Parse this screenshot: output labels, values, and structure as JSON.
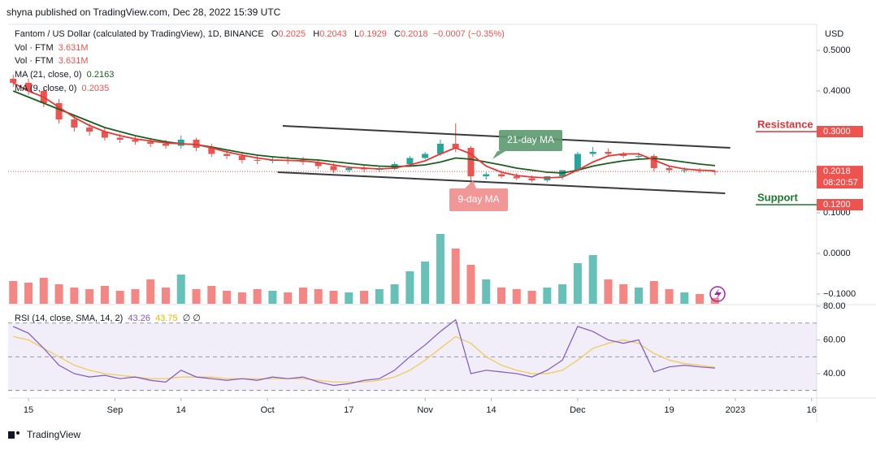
{
  "header": "shyna published on TradingView.com, Dec 28, 2022 15:39 UTC",
  "footer": "TradingView",
  "chart_data": {
    "type": "candlestick",
    "title": "Fantom / US Dollar (calculated by TradingView), 1D, BINANCE",
    "ohlc_letters": [
      "O",
      "H",
      "L",
      "C"
    ],
    "change": "−0.0007 (−0.35%)",
    "currency": "USD",
    "countdown": "08:20:57",
    "up_color": "#26a69a",
    "down_color": "#ef5350",
    "x": [
      "2022-08-12",
      "2022-08-15",
      "2022-08-18",
      "2022-08-21",
      "2022-08-24",
      "2022-08-27",
      "2022-08-30",
      "2022-09-02",
      "2022-09-05",
      "2022-09-08",
      "2022-09-11",
      "2022-09-14",
      "2022-09-17",
      "2022-09-20",
      "2022-09-23",
      "2022-09-26",
      "2022-09-29",
      "2022-10-02",
      "2022-10-05",
      "2022-10-08",
      "2022-10-11",
      "2022-10-14",
      "2022-10-17",
      "2022-10-20",
      "2022-10-23",
      "2022-10-26",
      "2022-10-29",
      "2022-11-01",
      "2022-11-04",
      "2022-11-07",
      "2022-11-10",
      "2022-11-13",
      "2022-11-16",
      "2022-11-19",
      "2022-11-22",
      "2022-11-25",
      "2022-11-28",
      "2022-12-01",
      "2022-12-04",
      "2022-12-07",
      "2022-12-10",
      "2022-12-13",
      "2022-12-16",
      "2022-12-19",
      "2022-12-22",
      "2022-12-25",
      "2022-12-28"
    ],
    "open": [
      0.43,
      0.42,
      0.4,
      0.37,
      0.33,
      0.31,
      0.3,
      0.285,
      0.28,
      0.275,
      0.27,
      0.265,
      0.28,
      0.26,
      0.245,
      0.24,
      0.23,
      0.228,
      0.23,
      0.228,
      0.225,
      0.215,
      0.205,
      0.21,
      0.207,
      0.208,
      0.22,
      0.235,
      0.245,
      0.27,
      0.26,
      0.19,
      0.195,
      0.19,
      0.185,
      0.18,
      0.19,
      0.205,
      0.245,
      0.25,
      0.245,
      0.24,
      0.24,
      0.21,
      0.205,
      0.205,
      0.2025
    ],
    "high": [
      0.44,
      0.43,
      0.41,
      0.38,
      0.34,
      0.32,
      0.31,
      0.295,
      0.29,
      0.285,
      0.28,
      0.29,
      0.285,
      0.27,
      0.255,
      0.25,
      0.24,
      0.238,
      0.24,
      0.238,
      0.232,
      0.222,
      0.215,
      0.218,
      0.215,
      0.225,
      0.24,
      0.25,
      0.28,
      0.32,
      0.265,
      0.2,
      0.205,
      0.198,
      0.192,
      0.19,
      0.2,
      0.25,
      0.262,
      0.258,
      0.25,
      0.248,
      0.245,
      0.215,
      0.212,
      0.21,
      0.2043
    ],
    "low": [
      0.41,
      0.39,
      0.36,
      0.32,
      0.3,
      0.29,
      0.278,
      0.272,
      0.268,
      0.262,
      0.258,
      0.258,
      0.252,
      0.238,
      0.232,
      0.222,
      0.22,
      0.222,
      0.22,
      0.218,
      0.208,
      0.198,
      0.2,
      0.2,
      0.2,
      0.205,
      0.218,
      0.232,
      0.24,
      0.25,
      0.17,
      0.182,
      0.185,
      0.18,
      0.175,
      0.175,
      0.182,
      0.2,
      0.238,
      0.238,
      0.235,
      0.232,
      0.202,
      0.198,
      0.198,
      0.198,
      0.1929
    ],
    "close": [
      0.42,
      0.4,
      0.37,
      0.33,
      0.31,
      0.3,
      0.285,
      0.28,
      0.275,
      0.27,
      0.265,
      0.28,
      0.26,
      0.245,
      0.24,
      0.23,
      0.228,
      0.23,
      0.228,
      0.225,
      0.215,
      0.205,
      0.21,
      0.207,
      0.208,
      0.22,
      0.235,
      0.245,
      0.27,
      0.26,
      0.19,
      0.195,
      0.19,
      0.185,
      0.18,
      0.19,
      0.205,
      0.245,
      0.25,
      0.245,
      0.24,
      0.24,
      0.21,
      0.205,
      0.205,
      0.203,
      0.2018
    ],
    "series": [
      {
        "name": "MA (21, close, 0)",
        "color": "#1b5e20",
        "values": [
          0.4,
          0.385,
          0.37,
          0.355,
          0.34,
          0.325,
          0.31,
          0.3,
          0.29,
          0.282,
          0.275,
          0.27,
          0.268,
          0.262,
          0.255,
          0.248,
          0.242,
          0.238,
          0.235,
          0.232,
          0.23,
          0.226,
          0.222,
          0.218,
          0.215,
          0.214,
          0.215,
          0.218,
          0.225,
          0.235,
          0.232,
          0.225,
          0.218,
          0.21,
          0.205,
          0.2,
          0.198,
          0.205,
          0.215,
          0.222,
          0.228,
          0.232,
          0.234,
          0.23,
          0.225,
          0.22,
          0.2163
        ]
      },
      {
        "name": "MA (9, close, 0)",
        "color": "#e53935",
        "values": [
          0.42,
          0.4,
          0.385,
          0.36,
          0.335,
          0.315,
          0.3,
          0.29,
          0.282,
          0.277,
          0.272,
          0.27,
          0.268,
          0.26,
          0.25,
          0.242,
          0.235,
          0.23,
          0.229,
          0.228,
          0.224,
          0.218,
          0.212,
          0.21,
          0.208,
          0.21,
          0.218,
          0.228,
          0.245,
          0.26,
          0.245,
          0.215,
          0.2,
          0.192,
          0.188,
          0.186,
          0.188,
          0.205,
          0.225,
          0.24,
          0.245,
          0.245,
          0.23,
          0.215,
          0.208,
          0.205,
          0.2035
        ]
      }
    ],
    "xlim": [
      "2022-08-11",
      "2023-01-17"
    ],
    "xticks": [
      {
        "value": "2022-08-15",
        "label": "15"
      },
      {
        "value": "2022-09-01",
        "label": "Sep"
      },
      {
        "value": "2022-09-14",
        "label": "14"
      },
      {
        "value": "2022-10-01",
        "label": "Oct"
      },
      {
        "value": "2022-10-17",
        "label": "17"
      },
      {
        "value": "2022-11-01",
        "label": "Nov"
      },
      {
        "value": "2022-11-14",
        "label": "14"
      },
      {
        "value": "2022-12-01",
        "label": "Dec"
      },
      {
        "value": "2022-12-19",
        "label": "19"
      },
      {
        "value": "2023-01-01",
        "label": "2023"
      },
      {
        "value": "2023-01-16",
        "label": "16"
      }
    ],
    "ylim": [
      -0.125,
      0.55
    ],
    "yticks": [
      {
        "value": 0.5,
        "label": "0.5000"
      },
      {
        "value": 0.4,
        "label": "0.4000"
      },
      {
        "value": 0.1,
        "label": "0.1000"
      },
      {
        "value": 0,
        "label": "0.0000"
      },
      {
        "value": -0.1,
        "label": "−0.1000"
      }
    ],
    "grid": false,
    "trend_lines": [
      {
        "x": [
          "2022-10-04",
          "2022-12-31"
        ],
        "y": [
          0.314,
          0.26
        ]
      },
      {
        "x": [
          "2022-10-03",
          "2022-12-30"
        ],
        "y": [
          0.2,
          0.148
        ]
      }
    ],
    "levels": [
      {
        "name": "Resistance",
        "value": 0.3,
        "label": "0.3000",
        "color": "#e0323a"
      },
      {
        "name": "Support",
        "value": 0.12,
        "label": "0.1200",
        "color": "#1b7a2e"
      }
    ],
    "annotations": [
      "21-day MA",
      "9-day MA"
    ],
    "volume": {
      "name": "Vol · FTM",
      "legend_value": "3.631M",
      "ylim": [
        0,
        50000000
      ],
      "values": [
        14000000,
        13000000,
        16000000,
        12000000,
        10000000,
        9000000,
        11000000,
        8000000,
        9000000,
        15000000,
        10000000,
        18000000,
        9000000,
        11000000,
        8000000,
        7000000,
        9000000,
        8000000,
        7000000,
        10000000,
        9000000,
        8000000,
        7000000,
        8000000,
        9000000,
        12000000,
        20000000,
        26000000,
        43000000,
        34000000,
        24000000,
        15000000,
        10000000,
        9000000,
        8000000,
        10000000,
        12000000,
        25000000,
        30000000,
        15000000,
        12000000,
        10000000,
        14000000,
        9000000,
        7000000,
        6000000,
        3631000
      ]
    },
    "rsi": {
      "name": "RSI (14, close, SMA, 14, 2)",
      "color": "#7e57c2",
      "sma_color": "#f0c94a",
      "extra": "∅ ∅",
      "values": [
        68,
        64,
        55,
        45,
        40,
        38,
        39,
        37,
        38,
        36,
        35,
        42,
        38,
        37,
        36,
        37,
        36,
        38,
        37,
        38,
        35,
        33,
        34,
        36,
        37,
        42,
        50,
        57,
        65,
        72,
        40,
        42,
        41,
        40,
        38,
        42,
        48,
        68,
        65,
        60,
        58,
        60,
        41,
        44,
        45,
        44,
        43.26
      ],
      "sma": [
        62,
        60,
        55,
        50,
        45,
        42,
        40,
        39,
        38,
        37,
        37,
        38,
        38,
        38,
        37,
        37,
        37,
        37,
        37,
        37,
        36,
        35,
        35,
        35,
        36,
        38,
        42,
        48,
        55,
        62,
        58,
        50,
        45,
        42,
        40,
        40,
        42,
        48,
        55,
        58,
        60,
        58,
        52,
        48,
        46,
        45,
        43.75
      ],
      "ylim": [
        26,
        80
      ],
      "yticks": [
        {
          "value": 40,
          "label": "40.00"
        },
        {
          "value": 60,
          "label": "60.00"
        },
        {
          "value": 80,
          "label": "80.00"
        }
      ],
      "bands": [
        30,
        50,
        70
      ]
    }
  }
}
